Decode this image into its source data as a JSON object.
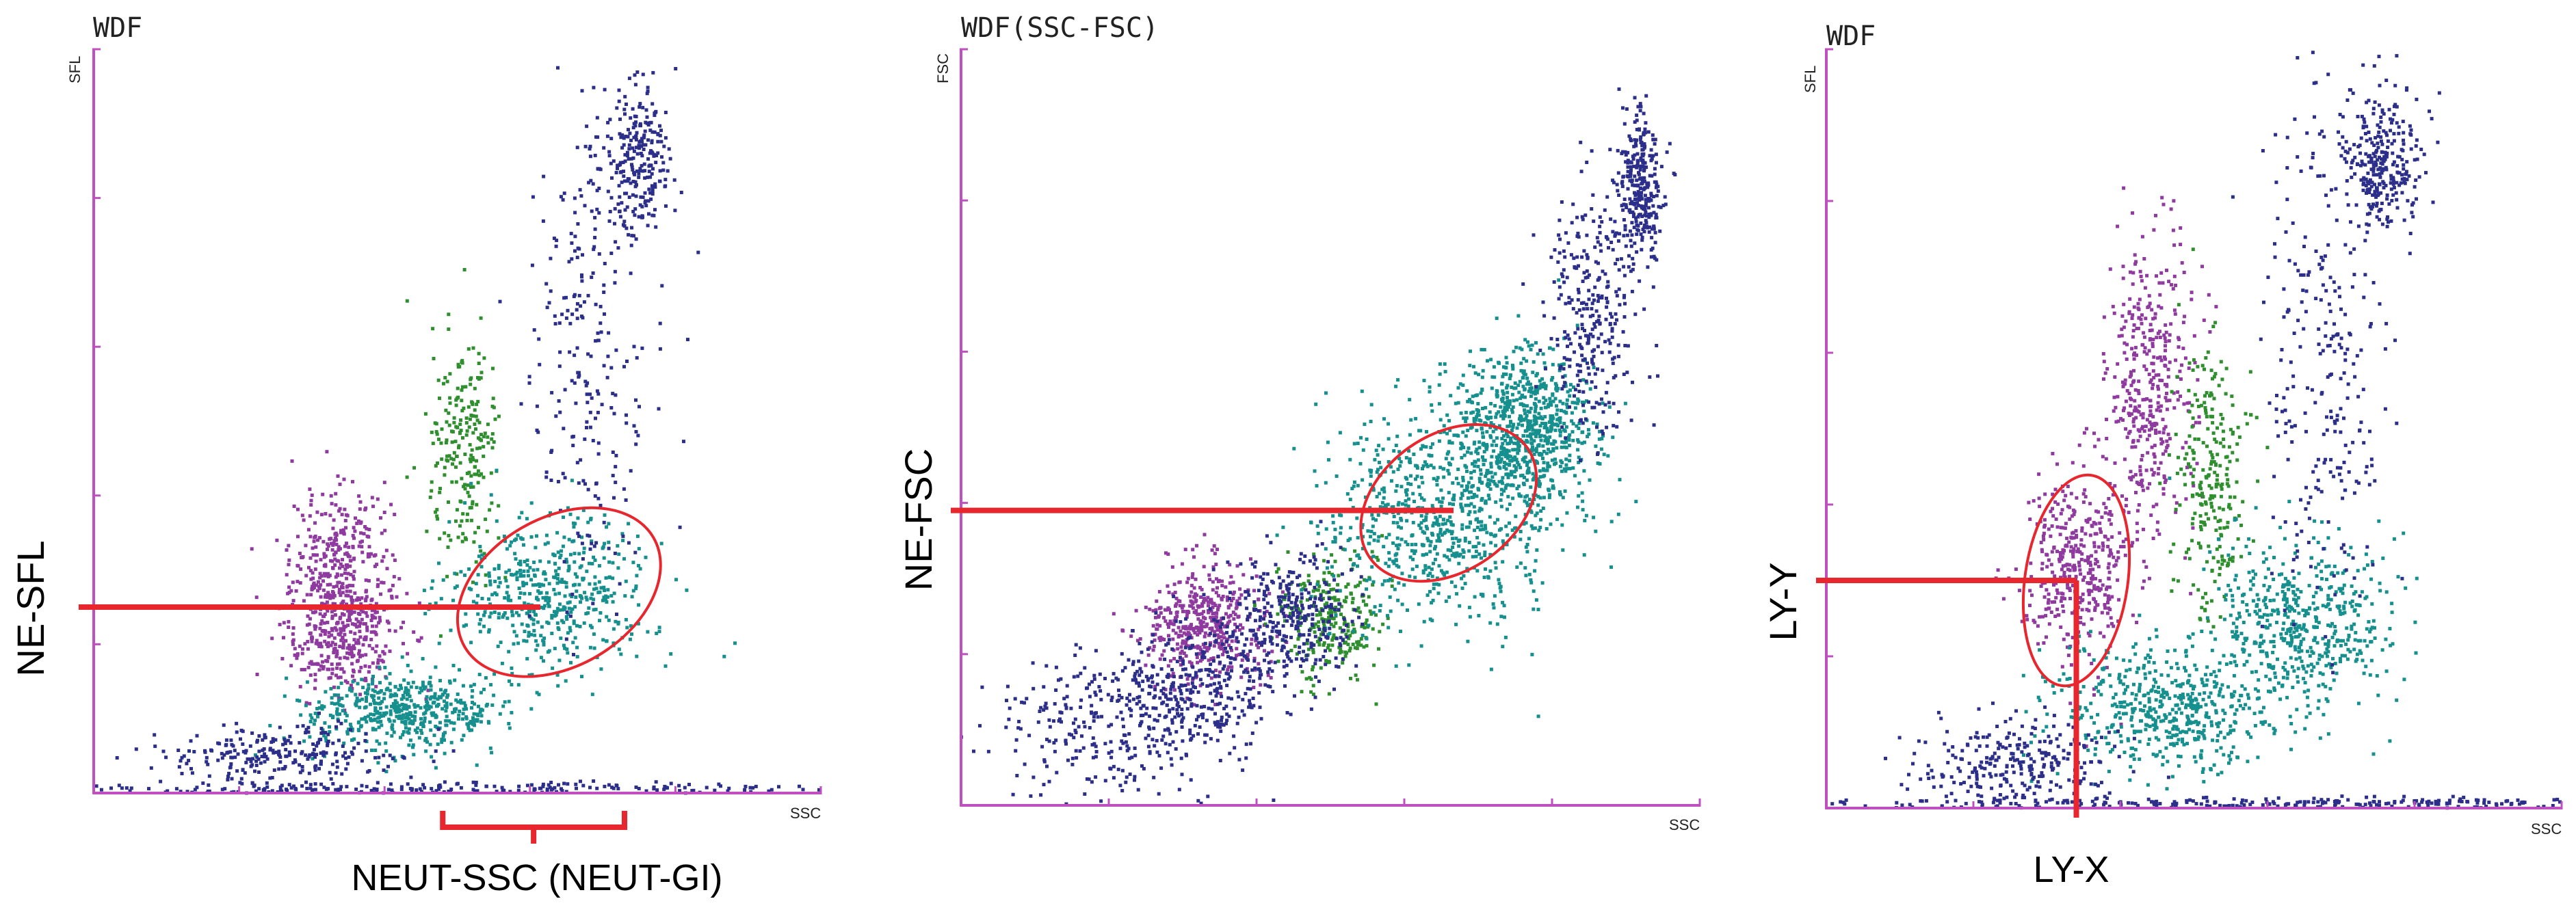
{
  "chart_data": [
    {
      "type": "scatter",
      "title": "WDF",
      "xlabel": "SSC",
      "ylabel": "SFL",
      "xlim": [
        0,
        100
      ],
      "ylim": [
        0,
        100
      ],
      "grid": false,
      "ticks": {
        "x": [
          0,
          20,
          40,
          60,
          80,
          100
        ],
        "y": [
          0,
          20,
          40,
          60,
          80,
          100
        ]
      },
      "annotations": [
        {
          "text": "NE-SFL",
          "kind": "y-marker",
          "value": 25
        },
        {
          "text": "NEUT-SSC (NEUT-GI)",
          "kind": "x-range-bracket",
          "range": [
            48,
            73
          ]
        }
      ],
      "highlight_ellipse": {
        "cx": 64,
        "cy": 27,
        "rx": 15,
        "ry": 10,
        "angle_deg": -30
      },
      "series": [
        {
          "color": "#8e3a9e",
          "density": 650,
          "clusters": [
            [
              34,
              31,
              3.5,
              5
            ],
            [
              34,
              21,
              4,
              4
            ]
          ]
        },
        {
          "color": "#2f8f2f",
          "density": 230,
          "clusters": [
            [
              51,
              45,
              2.5,
              8
            ]
          ]
        },
        {
          "color": "#16908e",
          "density": 1000,
          "clusters": [
            [
              63,
              27,
              7,
              5
            ],
            [
              43,
              11,
              7,
              2.5
            ]
          ]
        },
        {
          "color": "#2c2f8a",
          "density": 1000,
          "clusters": [
            [
              68,
              60,
              4,
              18
            ],
            [
              75,
              85,
              2.5,
              5
            ],
            [
              25,
              5,
              9,
              2
            ],
            [
              50,
              0.6,
              32,
              0.4
            ]
          ]
        }
      ]
    },
    {
      "type": "scatter",
      "title": "WDF(SSC-FSC)",
      "xlabel": "SSC",
      "ylabel": "FSC",
      "xlim": [
        0,
        100
      ],
      "ylim": [
        0,
        100
      ],
      "grid": false,
      "ticks": {
        "x": [
          0,
          20,
          40,
          60,
          80,
          100
        ],
        "y": [
          0,
          20,
          40,
          60,
          80,
          100
        ]
      },
      "annotations": [
        {
          "text": "NE-FSC",
          "kind": "y-marker",
          "value": 39
        }
      ],
      "highlight_ellipse": {
        "cx": 66,
        "cy": 40,
        "rx": 13,
        "ry": 9,
        "angle_deg": -35
      },
      "series": [
        {
          "color": "#8e3a9e",
          "density": 450,
          "clusters": [
            [
              33,
              24,
              4,
              4
            ]
          ]
        },
        {
          "color": "#2f8f2f",
          "density": 260,
          "clusters": [
            [
              50,
              25,
              3.5,
              4
            ]
          ]
        },
        {
          "color": "#16908e",
          "density": 1500,
          "clusters": [
            [
              64,
              38,
              8,
              7
            ],
            [
              76,
              50,
              5,
              5
            ]
          ]
        },
        {
          "color": "#2c2f8a",
          "density": 1500,
          "clusters": [
            [
              20,
              10,
              8,
              5
            ],
            [
              33,
              16,
              6,
              4
            ],
            [
              45,
              25,
              4,
              4
            ],
            [
              85,
              65,
              3,
              8
            ],
            [
              92,
              82,
              1.5,
              5
            ]
          ]
        }
      ]
    },
    {
      "type": "scatter",
      "title": "WDF",
      "xlabel": "SSC",
      "ylabel": "SFL",
      "xlim": [
        0,
        100
      ],
      "ylim": [
        0,
        100
      ],
      "grid": false,
      "ticks": {
        "x": [
          0,
          20,
          40,
          60,
          80,
          100
        ],
        "y": [
          0,
          20,
          40,
          60,
          80,
          100
        ]
      },
      "annotations": [
        {
          "text": "LY-Y",
          "kind": "y-marker",
          "value": 30
        },
        {
          "text": "LY-X",
          "kind": "x-marker",
          "value": 34
        }
      ],
      "highlight_ellipse": {
        "cx": 34,
        "cy": 30,
        "rx": 7,
        "ry": 14,
        "angle_deg": 8
      },
      "series": [
        {
          "color": "#8e3a9e",
          "density": 800,
          "clusters": [
            [
              34,
              32,
              3.5,
              6
            ],
            [
              44,
              55,
              3,
              10
            ]
          ]
        },
        {
          "color": "#2f8f2f",
          "density": 250,
          "clusters": [
            [
              52,
              44,
              2.5,
              9
            ]
          ]
        },
        {
          "color": "#16908e",
          "density": 1050,
          "clusters": [
            [
              64,
              24,
              6,
              6
            ],
            [
              46,
              13,
              7,
              4
            ]
          ]
        },
        {
          "color": "#2c2f8a",
          "density": 1100,
          "clusters": [
            [
              68,
              60,
              4,
              18
            ],
            [
              76,
              85,
              2.5,
              5
            ],
            [
              25,
              6,
              7,
              3
            ],
            [
              60,
              0.6,
              28,
              0.4
            ]
          ]
        }
      ]
    }
  ]
}
